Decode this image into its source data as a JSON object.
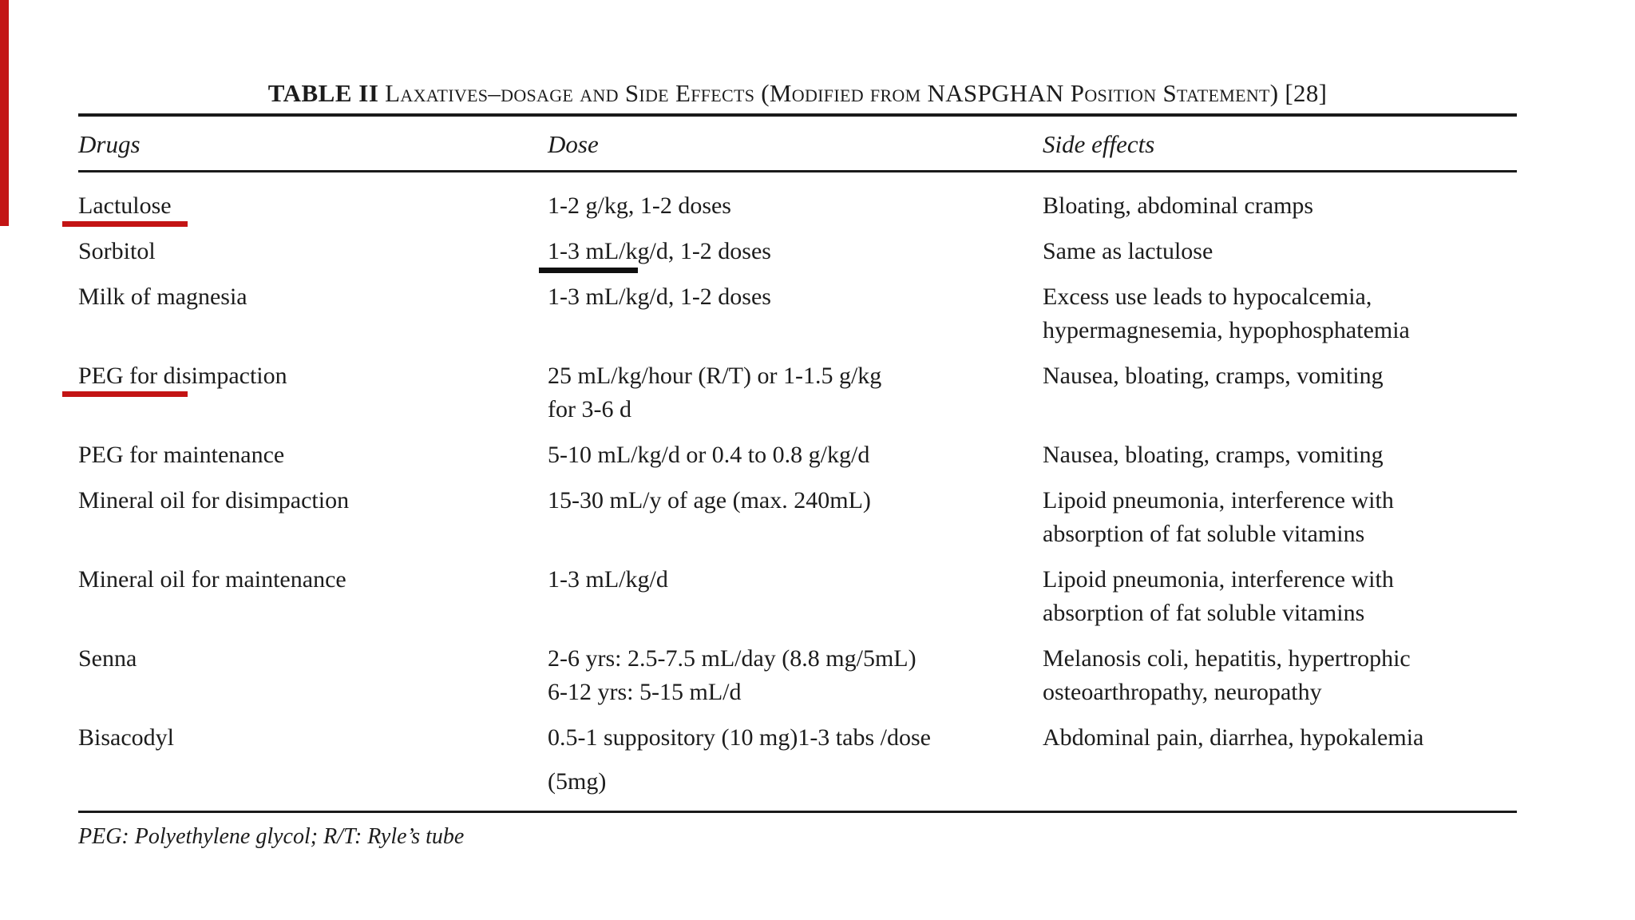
{
  "table": {
    "title_label": "TABLE II",
    "title_text": "Laxatives–dosage and Side Effects (Modified from NASPGHAN Position Statement) [28]",
    "columns": [
      "Drugs",
      "Dose",
      "Side effects"
    ],
    "rows": [
      {
        "drug": "Lactulose",
        "dose_lines": [
          "1-2 g/kg, 1-2 doses"
        ],
        "side_lines": [
          "Bloating, abdominal cramps"
        ],
        "drug_underline": "red"
      },
      {
        "drug": "Sorbitol",
        "dose_lines": [
          "1-3 mL/kg/d, 1-2 doses"
        ],
        "side_lines": [
          "Same as lactulose"
        ],
        "dose_underline": "black"
      },
      {
        "drug": "Milk of magnesia",
        "dose_lines": [
          "1-3 mL/kg/d, 1-2 doses"
        ],
        "side_lines": [
          "Excess use leads to hypocalcemia,",
          "hypermagnesemia, hypophosphatemia"
        ]
      },
      {
        "drug": "PEG for disimpaction",
        "dose_lines": [
          "25 mL/kg/hour (R/T) or 1-1.5 g/kg",
          "for 3-6 d"
        ],
        "side_lines": [
          "Nausea, bloating, cramps, vomiting"
        ],
        "drug_underline": "red"
      },
      {
        "drug": "PEG for maintenance",
        "dose_lines": [
          "5-10 mL/kg/d or 0.4 to 0.8 g/kg/d"
        ],
        "side_lines": [
          "Nausea, bloating, cramps, vomiting"
        ]
      },
      {
        "drug": "Mineral oil for disimpaction",
        "dose_lines": [
          "15-30 mL/y of age (max. 240mL)"
        ],
        "side_lines": [
          "Lipoid pneumonia, interference with",
          "absorption of fat soluble vitamins"
        ]
      },
      {
        "drug": "Mineral oil for maintenance",
        "dose_lines": [
          "1-3 mL/kg/d"
        ],
        "side_lines": [
          "Lipoid pneumonia, interference with",
          "absorption of fat soluble vitamins"
        ]
      },
      {
        "drug": "Senna",
        "dose_lines": [
          "2-6 yrs: 2.5-7.5 mL/day (8.8 mg/5mL)",
          "6-12 yrs: 5-15 mL/d"
        ],
        "side_lines": [
          "Melanosis coli, hepatitis, hypertrophic",
          "osteoarthropathy, neuropathy"
        ]
      },
      {
        "drug": "Bisacodyl",
        "dose_lines": [
          "0.5-1 suppository (10 mg)1-3 tabs /dose",
          "(5mg)"
        ],
        "side_lines": [
          "Abdominal pain, diarrhea, hypokalemia"
        ]
      }
    ],
    "footnote": "PEG: Polyethylene glycol; R/T: Ryle’s tube"
  },
  "annotations": {
    "underline_red_color": "#c31414",
    "underline_black_color": "#101010",
    "red_underlined_drugs": [
      "Lactulose",
      "PEG for disimpaction"
    ],
    "black_underlined_dose": "1-3 mL/kg (Sorbitol)"
  }
}
